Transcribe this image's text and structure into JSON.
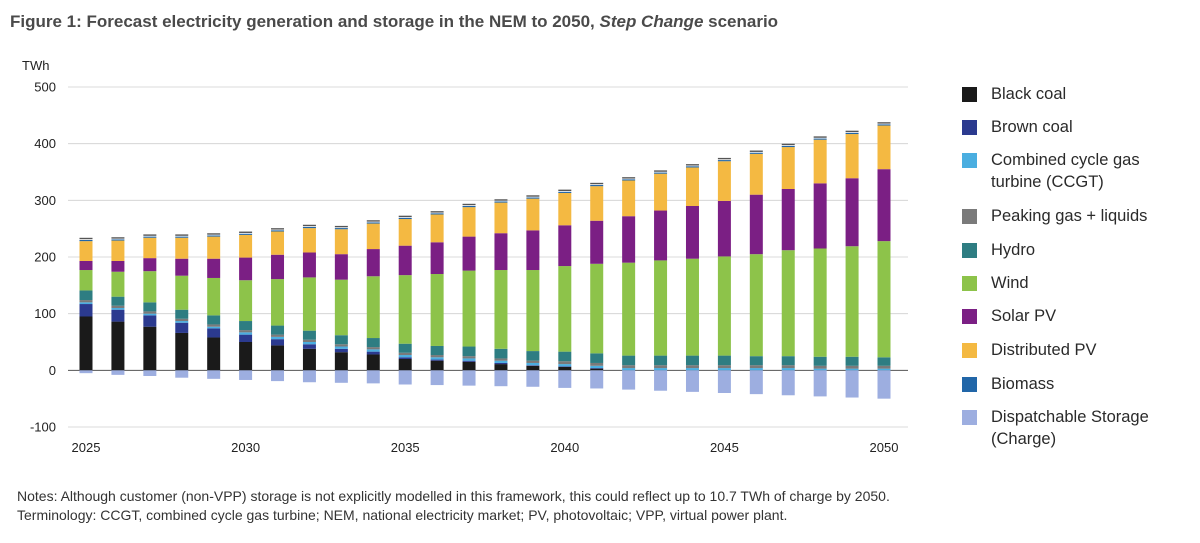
{
  "title": {
    "prefix": "Figure 1: Forecast electricity generation and storage in the NEM to 2050, ",
    "italic": "Step Change",
    "suffix": " scenario"
  },
  "notes": {
    "line1": "Notes: Although customer (non-VPP) storage is not explicitly modelled in this framework, this could reflect up to 10.7 TWh of charge by 2050.",
    "line2": "Terminology: CCGT, combined cycle gas turbine; NEM, national electricity market; PV, photovoltaic; VPP, virtual power plant."
  },
  "chart_data": {
    "type": "bar",
    "stacked": true,
    "ylabel": "TWh",
    "ylim": [
      -100,
      500
    ],
    "yticks": [
      500,
      400,
      300,
      200,
      100,
      0,
      -100
    ],
    "grid": true,
    "legend_position": "right",
    "categories": [
      2025,
      2026,
      2027,
      2028,
      2029,
      2030,
      2031,
      2032,
      2033,
      2034,
      2035,
      2036,
      2037,
      2038,
      2039,
      2040,
      2041,
      2042,
      2043,
      2044,
      2045,
      2046,
      2047,
      2048,
      2049,
      2050
    ],
    "xtick_labels": [
      "2025",
      "2030",
      "2035",
      "2040",
      "2045",
      "2050"
    ],
    "series": [
      {
        "name": "Black coal",
        "color": "#1a1a1a",
        "values": [
          95,
          86,
          77,
          66,
          58,
          50,
          44,
          38,
          32,
          28,
          20,
          17,
          15,
          11,
          8,
          6,
          3,
          0,
          0,
          0,
          0,
          0,
          0,
          0,
          0,
          0
        ]
      },
      {
        "name": "Brown coal",
        "color": "#2b3a8f",
        "values": [
          22,
          21,
          20,
          18,
          16,
          13,
          11,
          8,
          6,
          5,
          3,
          2,
          2,
          2,
          1,
          1,
          1,
          0,
          0,
          0,
          0,
          0,
          0,
          0,
          0,
          0
        ]
      },
      {
        "name": "Combined cycle gas turbine (CCGT)",
        "color": "#4aaee0",
        "values": [
          3,
          3,
          3,
          3,
          3,
          4,
          4,
          4,
          4,
          4,
          4,
          4,
          4,
          4,
          4,
          4,
          4,
          4,
          4,
          4,
          4,
          4,
          4,
          3,
          3,
          3
        ]
      },
      {
        "name": "Peaking gas + liquids",
        "color": "#7a7a7a",
        "values": [
          4,
          4,
          4,
          4,
          4,
          4,
          4,
          4,
          4,
          4,
          4,
          4,
          4,
          4,
          4,
          5,
          5,
          5,
          5,
          5,
          5,
          5,
          5,
          5,
          5,
          5
        ]
      },
      {
        "name": "Hydro",
        "color": "#2e7d82",
        "values": [
          17,
          16,
          16,
          16,
          16,
          16,
          16,
          16,
          16,
          16,
          16,
          16,
          17,
          17,
          17,
          17,
          17,
          17,
          17,
          17,
          17,
          16,
          16,
          16,
          16,
          15
        ]
      },
      {
        "name": "Wind",
        "color": "#8dc34a",
        "values": [
          36,
          44,
          55,
          60,
          66,
          72,
          82,
          94,
          98,
          109,
          121,
          127,
          134,
          139,
          143,
          151,
          158,
          164,
          168,
          171,
          175,
          180,
          187,
          191,
          195,
          205
        ]
      },
      {
        "name": "Solar PV",
        "color": "#7b1f84",
        "values": [
          16,
          19,
          23,
          30,
          34,
          40,
          43,
          44,
          45,
          48,
          52,
          56,
          60,
          65,
          70,
          72,
          76,
          82,
          88,
          93,
          98,
          105,
          108,
          115,
          120,
          127
        ]
      },
      {
        "name": "Distributed PV",
        "color": "#f4b942",
        "values": [
          35,
          36,
          36,
          37,
          39,
          40,
          41,
          43,
          44,
          45,
          47,
          49,
          52,
          54,
          56,
          57,
          61,
          63,
          65,
          68,
          70,
          72,
          74,
          77,
          78,
          77
        ]
      },
      {
        "name": "Biomass",
        "color": "#2166a8",
        "values": [
          2,
          2,
          2,
          2,
          2,
          2,
          2,
          2,
          2,
          2,
          2,
          2,
          2,
          2,
          2,
          2,
          2,
          2,
          2,
          2,
          2,
          2,
          2,
          2,
          2,
          2
        ]
      },
      {
        "name": "Dispatchable Storage (Charge)",
        "color": "#9daee0",
        "values": [
          -5,
          -8,
          -10,
          -13,
          -15,
          -17,
          -19,
          -21,
          -22,
          -23,
          -25,
          -26,
          -27,
          -28,
          -29,
          -31,
          -32,
          -34,
          -36,
          -38,
          -40,
          -42,
          -44,
          -46,
          -48,
          -50
        ]
      }
    ]
  },
  "legend": {
    "items": [
      {
        "label": "Black coal",
        "color": "#1a1a1a"
      },
      {
        "label": "Brown coal",
        "color": "#2b3a8f"
      },
      {
        "label": "Combined cycle gas turbine (CCGT)",
        "color": "#4aaee0"
      },
      {
        "label": "Peaking gas + liquids",
        "color": "#7a7a7a"
      },
      {
        "label": "Hydro",
        "color": "#2e7d82"
      },
      {
        "label": "Wind",
        "color": "#8dc34a"
      },
      {
        "label": "Solar PV",
        "color": "#7b1f84"
      },
      {
        "label": "Distributed PV",
        "color": "#f4b942"
      },
      {
        "label": "Biomass",
        "color": "#2166a8"
      },
      {
        "label": "Dispatchable Storage (Charge)",
        "color": "#9daee0"
      }
    ]
  }
}
